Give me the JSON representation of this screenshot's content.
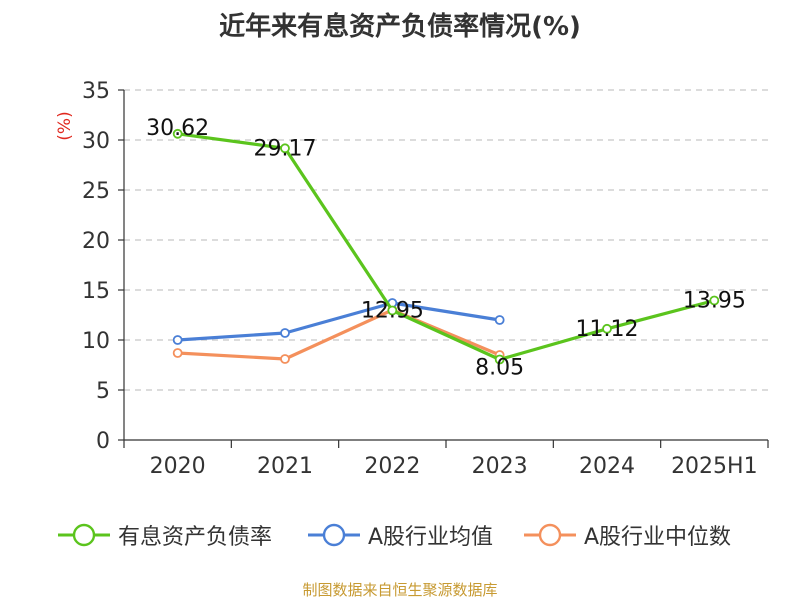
{
  "chart_data": {
    "type": "line",
    "title": "近年来有息资产负债率情况(%)",
    "ylabel": "(%)",
    "xlabel": "",
    "categories": [
      "2020",
      "2021",
      "2022",
      "2023",
      "2024",
      "2025H1"
    ],
    "ylim": [
      0,
      35
    ],
    "yticks": [
      0,
      5,
      10,
      15,
      20,
      25,
      30,
      35
    ],
    "grid": true,
    "legend_position": "bottom",
    "series": [
      {
        "name": "有息资产负债率",
        "color": "#5bc41d",
        "values": [
          30.62,
          29.17,
          12.95,
          8.05,
          11.12,
          13.95
        ],
        "labels": [
          "30.62",
          "29.17",
          "12.95",
          "8.05",
          "11.12",
          "13.95"
        ]
      },
      {
        "name": "A股行业均值",
        "color": "#4a7fd6",
        "values": [
          10.0,
          10.7,
          13.7,
          12.0,
          null,
          null
        ]
      },
      {
        "name": "A股行业中位数",
        "color": "#f4905c",
        "values": [
          8.7,
          8.1,
          13.0,
          8.5,
          null,
          null
        ]
      }
    ]
  },
  "source": "制图数据来自恒生聚源数据库"
}
